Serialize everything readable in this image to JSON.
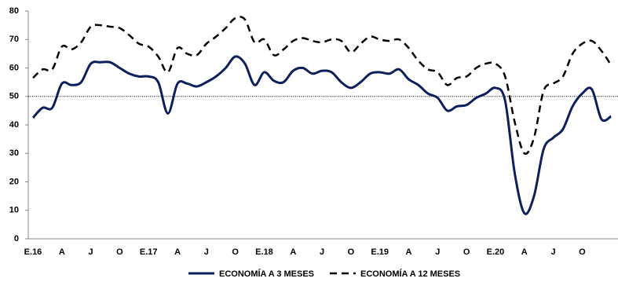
{
  "chart_data": {
    "type": "line",
    "categories": [
      "E.16",
      null,
      null,
      "A",
      null,
      null,
      "J",
      null,
      null,
      "O",
      null,
      null,
      "E.17",
      null,
      null,
      "A",
      null,
      null,
      "J",
      null,
      null,
      "O",
      null,
      null,
      "E.18",
      null,
      null,
      "A",
      null,
      null,
      "J",
      null,
      null,
      "O",
      null,
      null,
      "E.19",
      null,
      null,
      "A",
      null,
      null,
      "J",
      null,
      null,
      "O",
      null,
      null,
      "E.20",
      null,
      null,
      "A",
      null,
      null,
      "J",
      null,
      null,
      "O",
      null,
      null,
      null
    ],
    "series": [
      {
        "name": "ECONOMÍA A 3 MESES",
        "color": "#0d1f5c",
        "dash": false,
        "values": [
          42.5,
          46,
          46,
          54.5,
          54,
          55,
          61.5,
          62,
          62,
          60,
          58,
          57,
          57,
          55,
          44,
          54.5,
          54.5,
          53.5,
          55,
          57,
          60,
          64,
          61.5,
          54,
          58.5,
          55.5,
          55,
          59,
          60,
          58,
          59,
          58.5,
          55,
          53,
          55,
          58,
          58.5,
          58,
          59.5,
          56,
          54,
          51,
          49.5,
          45,
          46.5,
          47,
          49.5,
          51,
          53,
          48.5,
          23,
          9,
          15,
          31.5,
          35.5,
          38.5,
          46.5,
          51,
          52.5,
          42,
          43
        ]
      },
      {
        "name": "ECONOMÍA A 12 MESES",
        "color": "#000000",
        "dash": true,
        "values": [
          56.5,
          59.5,
          59.5,
          67.5,
          66.5,
          69,
          74.5,
          75,
          74.5,
          74,
          71.5,
          68.5,
          67.5,
          64,
          58.5,
          67,
          65,
          64.5,
          68.5,
          71,
          74,
          77.5,
          77,
          69,
          70,
          64.5,
          66.5,
          69.5,
          70.5,
          69.5,
          69,
          70,
          69.5,
          65.5,
          68.5,
          71,
          70,
          69.5,
          70,
          67,
          62.5,
          59.5,
          58.5,
          54,
          56.5,
          57,
          60,
          61.5,
          61.5,
          57,
          41,
          30,
          35.5,
          52,
          54.5,
          57,
          65,
          68.5,
          69.5,
          66,
          61
        ]
      }
    ],
    "ylim": [
      0,
      80
    ],
    "yticks": [
      0,
      10,
      20,
      30,
      40,
      50,
      60,
      70,
      80
    ],
    "reference_line": 50,
    "grid": false
  }
}
